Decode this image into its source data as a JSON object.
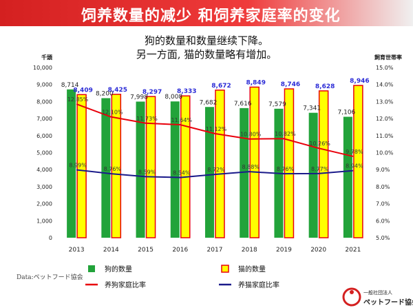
{
  "header": {
    "title": "饲养数量的减少 和饲养家庭率的变化"
  },
  "subtitle": {
    "line1": "狗的数量和数量继续下降。",
    "line2": "另一方面, 猫的数量略有增加。"
  },
  "source": "Data:ペットフード協会",
  "logo": {
    "line1": "一般社団法人",
    "line2": "ペットフード協会"
  },
  "colors": {
    "dog_bar": "#22a33a",
    "cat_bar": "#ffff00",
    "cat_bar_border": "#e8000b",
    "dog_rate": "#e8000b",
    "cat_rate": "#1a1a8a",
    "header": "#d42020"
  },
  "chart_data": {
    "type": "bar",
    "categories": [
      "2013",
      "2014",
      "2015",
      "2016",
      "2017",
      "2018",
      "2019",
      "2020",
      "2021"
    ],
    "y_left_label": "千頭",
    "y_right_label": "飼育世帯率",
    "y_left_range": [
      0,
      10000
    ],
    "y_left_ticks": [
      "0",
      "1,000",
      "2,000",
      "3,000",
      "4,000",
      "5,000",
      "6,000",
      "7,000",
      "8,000",
      "9,000",
      "10,000"
    ],
    "y_right_range": [
      5.0,
      15.0
    ],
    "y_right_ticks": [
      "5.0%",
      "6.0%",
      "7.0%",
      "8.0%",
      "9.0%",
      "10.0%",
      "11.0%",
      "12.0%",
      "13.0%",
      "14.0%",
      "15.0%"
    ],
    "bar_series": [
      {
        "name": "狗的数量",
        "values": [
          8714,
          8200,
          7998,
          8008,
          7682,
          7616,
          7579,
          7341,
          7106
        ],
        "labels": [
          "8,714",
          "8,200",
          "7,998",
          "8,008",
          "7,682",
          "7,616",
          "7,579",
          "7,341",
          "7,106"
        ]
      },
      {
        "name": "猫的数量",
        "values": [
          8409,
          8425,
          8297,
          8333,
          8672,
          8849,
          8746,
          8628,
          8946
        ],
        "labels": [
          "8,409",
          "8,425",
          "8,297",
          "8,333",
          "8,672",
          "8,849",
          "8,746",
          "8,628",
          "8,946"
        ]
      }
    ],
    "line_series": [
      {
        "name": "养狗家庭比率",
        "values": [
          12.85,
          12.1,
          11.73,
          11.64,
          11.12,
          10.8,
          10.82,
          10.26,
          9.78
        ],
        "labels": [
          "12.85%",
          "12.10%",
          "11.73%",
          "11.64%",
          "11.12%",
          "10.80%",
          "10.82%",
          "10.26%",
          "9.78%"
        ]
      },
      {
        "name": "养猫家庭比率",
        "values": [
          8.99,
          8.76,
          8.59,
          8.54,
          8.72,
          8.88,
          8.76,
          8.77,
          8.94
        ],
        "labels": [
          "8.99%",
          "8.76%",
          "8.59%",
          "8.54%",
          "8.72%",
          "8.88%",
          "8.76%",
          "8.77%",
          "8.94%"
        ]
      }
    ]
  }
}
